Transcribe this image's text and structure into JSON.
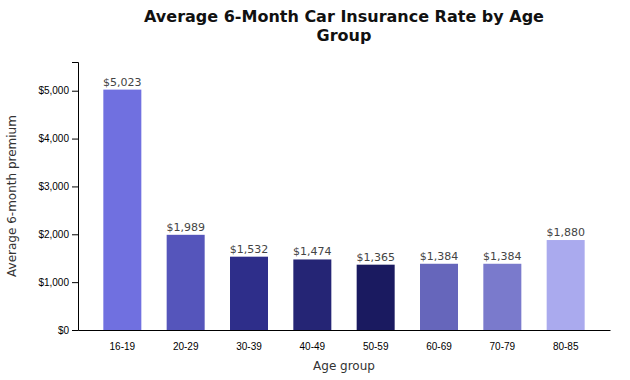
{
  "chart_data": {
    "type": "bar",
    "title": "Average 6-Month Car Insurance Rate by Age\nGroup",
    "xlabel": "Age group",
    "ylabel": "Average 6-month premium",
    "categories": [
      "16-19",
      "20-29",
      "30-39",
      "40-49",
      "50-59",
      "60-69",
      "70-79",
      "80-85"
    ],
    "values": [
      5023,
      1989,
      1532,
      1474,
      1365,
      1384,
      1384,
      1880
    ],
    "value_labels": [
      "$5,023",
      "$1,989",
      "$1,532",
      "$1,474",
      "$1,365",
      "$1,384",
      "$1,384",
      "$1,880"
    ],
    "data_labels": true,
    "colors": [
      "#7070e0",
      "#5555bb",
      "#2e2e8a",
      "#252575",
      "#1a1a60",
      "#6666bb",
      "#7a7acc",
      "#aaaaee"
    ],
    "ylim": [
      0,
      5600
    ],
    "yticks": [
      {
        "value": 0,
        "label": "$0"
      },
      {
        "value": 1000,
        "label": "$1,000"
      },
      {
        "value": 2000,
        "label": "$2,000"
      },
      {
        "value": 3000,
        "label": "$3,000"
      },
      {
        "value": 4000,
        "label": "$4,000"
      },
      {
        "value": 5000,
        "label": "$5,000"
      }
    ],
    "grid": false
  }
}
